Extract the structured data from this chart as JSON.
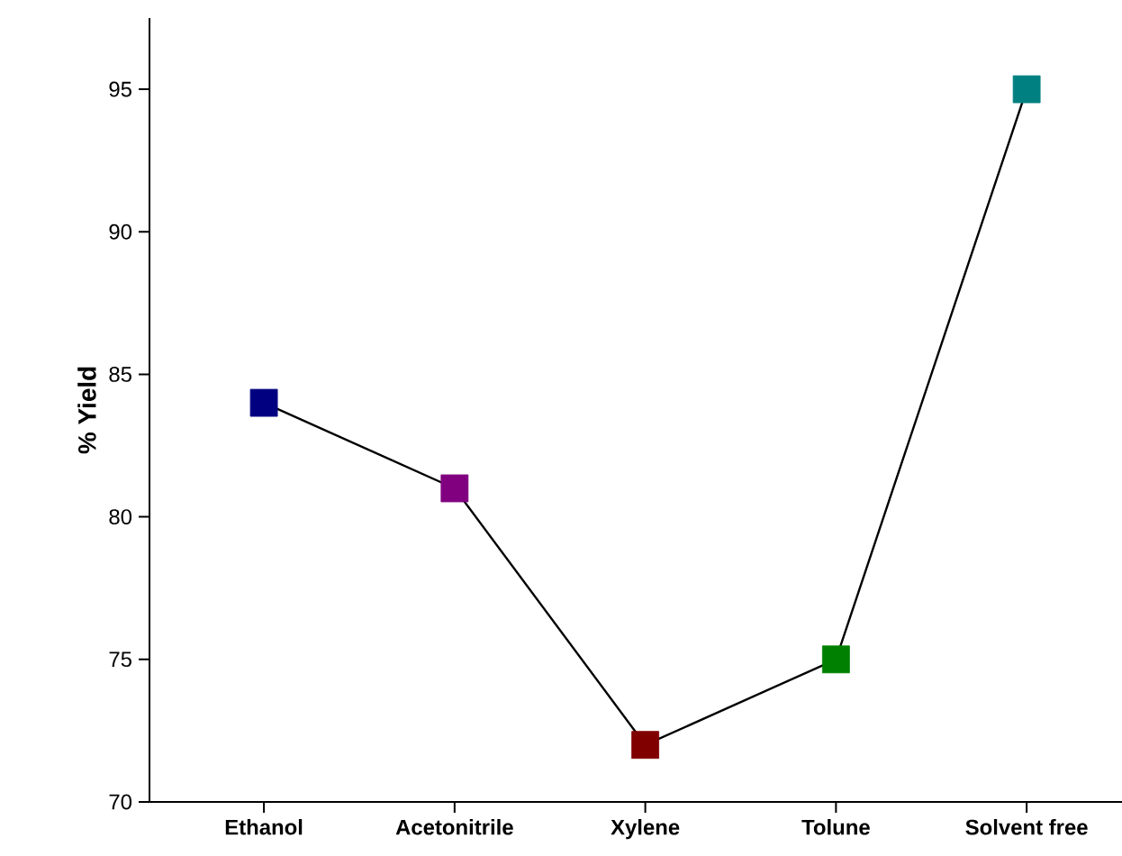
{
  "chart_data": {
    "type": "line",
    "ylabel": "% Yield",
    "categories": [
      "Ethanol",
      "Acetonitrile",
      "Xylene",
      "Tolune",
      "Solvent free"
    ],
    "series": [
      {
        "color": "#000000",
        "colors": [
          "#000080",
          "#800080",
          "#800000",
          "#008000",
          "#008080"
        ],
        "values": [
          84,
          81,
          72,
          75,
          95
        ]
      }
    ],
    "ylim": [
      70,
      97.5
    ],
    "yticks": [
      70,
      75,
      80,
      85,
      90,
      95
    ],
    "marker": "square",
    "line_style": "solid"
  }
}
